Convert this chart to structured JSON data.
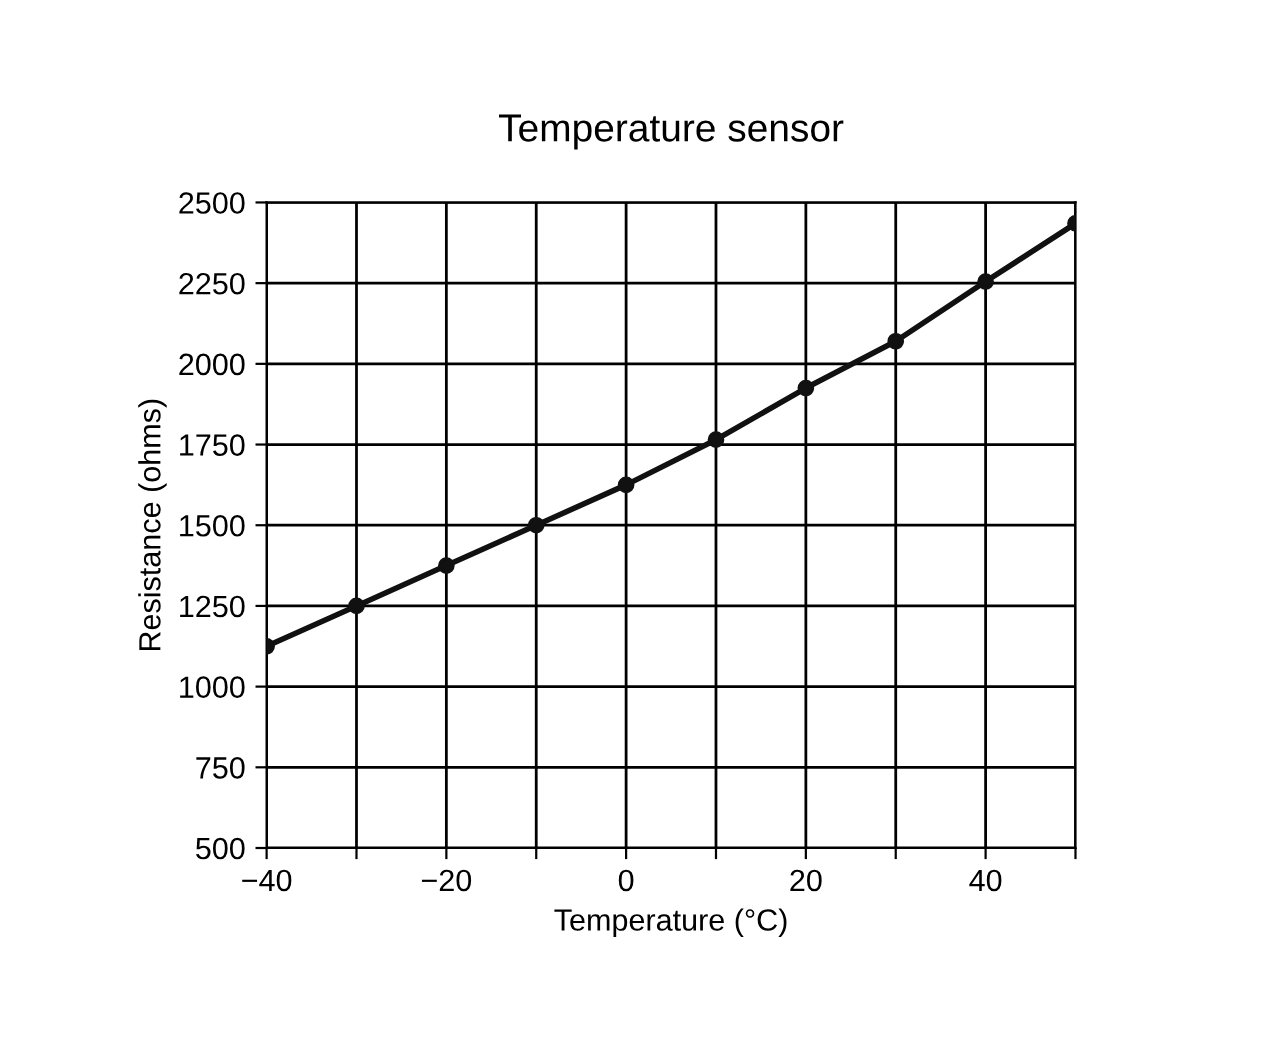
{
  "chart_data": {
    "type": "line",
    "title": "Temperature sensor",
    "xlabel": "Temperature (°C)",
    "ylabel": "Resistance (ohms)",
    "x": [
      -40,
      -30,
      -20,
      -10,
      0,
      10,
      20,
      30,
      40,
      50
    ],
    "series": [
      {
        "color": "#111111",
        "values": [
          1125,
          1250,
          1375,
          1500,
          1625,
          1765,
          1925,
          2070,
          2255,
          2435
        ]
      }
    ],
    "xlim": [
      -40,
      50
    ],
    "xticks": [
      -40,
      {
        "value": -30,
        "label": null
      },
      -20,
      {
        "value": -10,
        "label": null
      },
      0,
      {
        "value": 10,
        "label": null
      },
      20,
      {
        "value": 30,
        "label": null
      },
      40,
      {
        "value": 50,
        "label": null
      }
    ],
    "ylim": [
      500,
      2500
    ],
    "yticks": [
      500,
      750,
      1000,
      1250,
      1500,
      1750,
      2000,
      2250,
      2500
    ],
    "grid": true,
    "marker": "circle",
    "line_style": "solid",
    "legend": false
  }
}
